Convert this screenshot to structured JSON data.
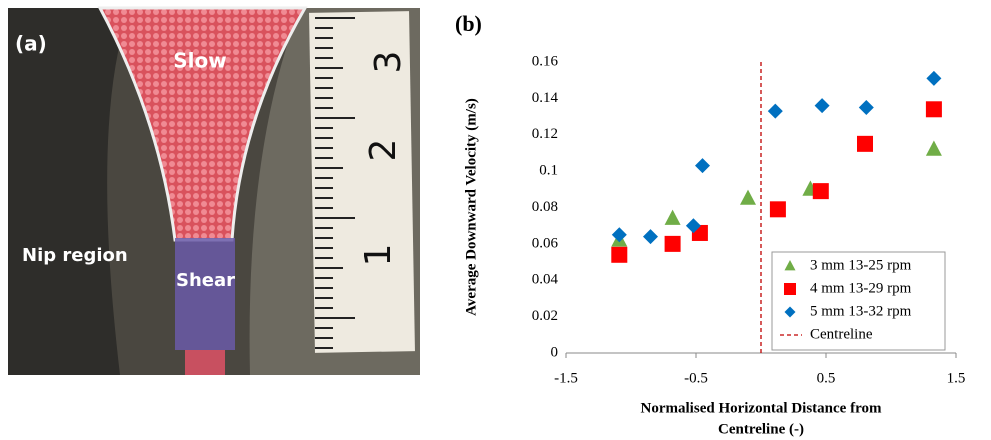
{
  "panel_a": {
    "label": "(a)",
    "zone_top": "Slow",
    "zone_left": "Nip region",
    "zone_bottom": "Shear",
    "ruler_marks": [
      "3",
      "2",
      "1"
    ]
  },
  "chart_data": {
    "type": "scatter",
    "panel_label": "(b)",
    "x_label": [
      "Normalised Horizontal Distance from",
      "Centreline (-)"
    ],
    "y_label": "Average Downward Velocity (m/s)",
    "xlim": [
      -1.5,
      1.5
    ],
    "xticks": [
      -1.5,
      -0.5,
      0.5,
      1.5
    ],
    "ylim": [
      0,
      0.16
    ],
    "yticks": [
      0,
      0.02,
      0.04,
      0.06,
      0.08,
      0.1,
      0.12,
      0.14,
      0.16
    ],
    "grid": false,
    "legend": "lower right",
    "series": [
      {
        "name": "3 mm 13-25 rpm",
        "color": "#70ad47",
        "marker": "triangle",
        "x": [
          -1.09,
          -0.68,
          -0.1,
          0.38,
          1.33
        ],
        "values": [
          0.062,
          0.074,
          0.085,
          0.09,
          0.112
        ]
      },
      {
        "name": "4 mm 13-29 rpm",
        "color": "#ff0000",
        "marker": "square",
        "x": [
          -1.09,
          -0.68,
          -0.47,
          0.13,
          0.46,
          0.8,
          1.33
        ],
        "values": [
          0.054,
          0.06,
          0.066,
          0.079,
          0.089,
          0.115,
          0.134
        ]
      },
      {
        "name": "5 mm 13-32 rpm",
        "color": "#0070c0",
        "marker": "diamond",
        "x": [
          -1.09,
          -0.85,
          -0.52,
          -0.45,
          0.11,
          0.47,
          0.81,
          1.33
        ],
        "values": [
          0.065,
          0.064,
          0.07,
          0.103,
          0.133,
          0.136,
          0.135,
          0.151
        ]
      }
    ],
    "centreline": {
      "name": "Centreline",
      "x": 0,
      "color": "#c00000"
    }
  }
}
